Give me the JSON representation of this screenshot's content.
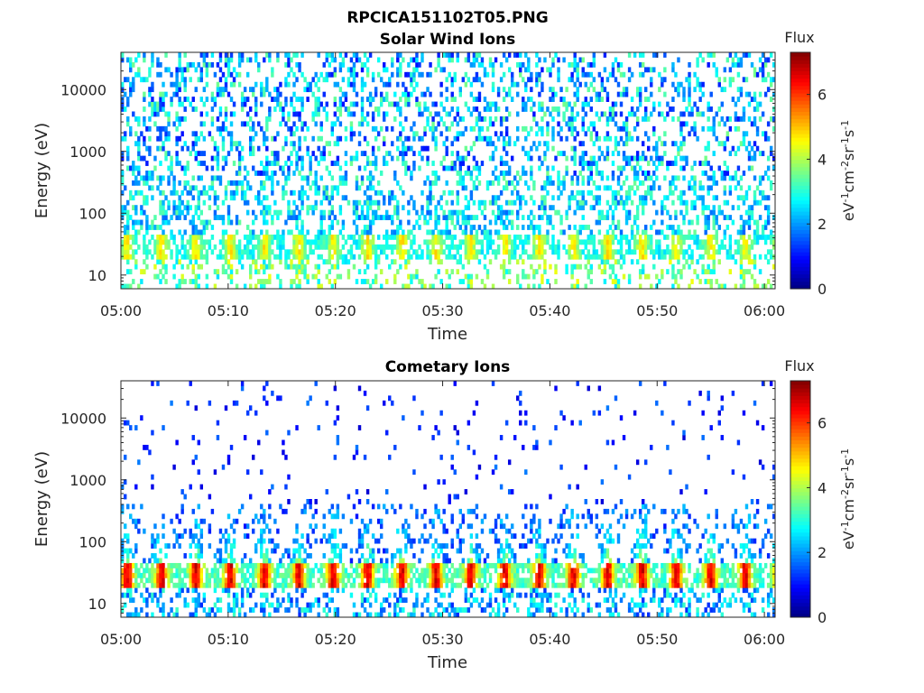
{
  "figure": {
    "filename": "RPCICA151102T05.PNG"
  },
  "chart_data": [
    {
      "type": "heatmap",
      "title": "Solar Wind Ions",
      "xlabel": "Time",
      "ylabel": "Energy (eV)",
      "x_ticks": [
        "05:00",
        "05:10",
        "05:20",
        "05:30",
        "05:40",
        "05:50",
        "06:00"
      ],
      "x_range": [
        "05:00",
        "06:01"
      ],
      "y_scale": "log",
      "y_ticks": [
        10,
        100,
        1000,
        10000
      ],
      "y_range": [
        6,
        40000
      ],
      "colorbar": {
        "label": "Flux",
        "unit": "eV-1cm-2sr-1s-1",
        "colormap": "jet",
        "ticks": [
          0,
          2,
          4,
          6
        ],
        "range": [
          0,
          7.3
        ]
      },
      "features": {
        "description": "Sparse speckled counts at flux 1-3.5 across 60-40000 eV; band near 20-40 eV at flux ~3.5-5 repeating every ~3.2 min",
        "band_energy_eV": [
          18,
          45
        ],
        "band_period_min": 3.2,
        "band_peak_flux": 4.6,
        "background_flux": [
          1.0,
          3.5
        ]
      }
    },
    {
      "type": "heatmap",
      "title": "Cometary Ions",
      "xlabel": "Time",
      "ylabel": "Energy (eV)",
      "x_ticks": [
        "05:00",
        "05:10",
        "05:20",
        "05:30",
        "05:40",
        "05:50",
        "06:00"
      ],
      "x_range": [
        "05:00",
        "06:01"
      ],
      "y_scale": "log",
      "y_ticks": [
        10,
        100,
        1000,
        10000
      ],
      "y_range": [
        6,
        40000
      ],
      "colorbar": {
        "label": "Flux",
        "unit": "eV-1cm-2sr-1s-1",
        "colormap": "jet",
        "ticks": [
          0,
          2,
          4,
          6
        ],
        "range": [
          0,
          7.3
        ]
      },
      "features": {
        "description": "Strong pulses at 18-45 eV reaching flux ~6.5 every ~3.2 min, with plumes extending to ~100-300 eV and sparse counts up to 10000 eV",
        "band_energy_eV": [
          18,
          45
        ],
        "band_period_min": 3.2,
        "band_peak_flux": 6.6,
        "background_flux": [
          0.5,
          3.0
        ]
      }
    }
  ]
}
